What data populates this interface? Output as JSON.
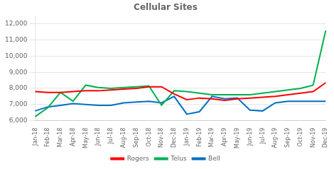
{
  "chart_data": {
    "type": "line",
    "title": "Cellular Sites",
    "categories": [
      "Jan-18",
      "Feb-18",
      "Mar-18",
      "Apr-18",
      "May-18",
      "Jun-18",
      "Jul-18",
      "Aug-18",
      "Sep-18",
      "Oct-18",
      "Nov-18",
      "Dec-18",
      "Jan-19",
      "Feb-19",
      "Mar-19",
      "Apr-19",
      "May-19",
      "Jun-19",
      "Jul-19",
      "Aug-19",
      "Sep-19",
      "Oct-19",
      "Nov-19",
      "Dec-19"
    ],
    "series": [
      {
        "name": "Rogers",
        "color": "#FF0000",
        "values": [
          7800,
          7750,
          7750,
          7800,
          7850,
          7850,
          7900,
          7950,
          8000,
          8100,
          8100,
          7650,
          7300,
          7400,
          7350,
          7250,
          7350,
          7400,
          7450,
          7500,
          7600,
          7700,
          7800,
          8350
        ]
      },
      {
        "name": "Telus",
        "color": "#00B050",
        "values": [
          6250,
          6800,
          7750,
          7200,
          8200,
          8050,
          8000,
          8050,
          8100,
          8150,
          6950,
          7850,
          7800,
          7700,
          7600,
          7600,
          7600,
          7600,
          7700,
          7800,
          7900,
          8000,
          8200,
          11600
        ]
      },
      {
        "name": "Bell",
        "color": "#0070C0",
        "values": [
          6600,
          6850,
          6950,
          7050,
          7000,
          6950,
          6950,
          7100,
          7150,
          7200,
          7100,
          7500,
          6400,
          6550,
          7500,
          7350,
          7400,
          6650,
          6600,
          7100,
          7200,
          7200,
          7200,
          7200
        ]
      }
    ],
    "ylim": [
      6000,
      12500
    ],
    "yticks": [
      {
        "value": 6000,
        "label": "6,000"
      },
      {
        "value": 7000,
        "label": "7,000"
      },
      {
        "value": 8000,
        "label": "8,000"
      },
      {
        "value": 9000,
        "label": "9,000"
      },
      {
        "value": 10000,
        "label": "10,000"
      },
      {
        "value": 11000,
        "label": "11,000"
      },
      {
        "value": 12000,
        "label": "12,000"
      }
    ],
    "grid": "y",
    "legend": "bottom"
  }
}
